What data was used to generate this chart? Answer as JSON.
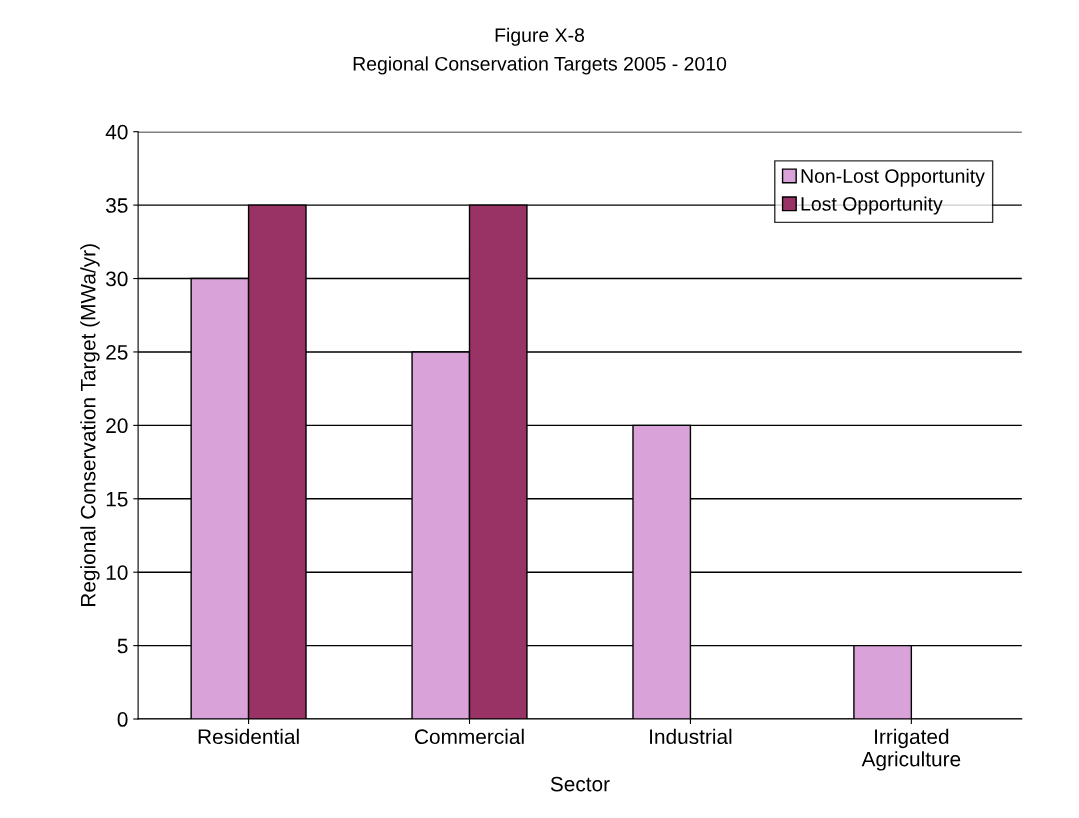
{
  "chart_data": {
    "type": "bar",
    "title": "Figure X-8",
    "subtitle": "Regional Conservation Targets 2005 - 2010",
    "xlabel": "Sector",
    "ylabel": "Regional Conservation Target (MWa/yr)",
    "categories": [
      "Residential",
      "Commercial",
      "Industrial",
      "Irrigated\nAgriculture"
    ],
    "series": [
      {
        "name": "Non-Lost Opportunity",
        "color": "#d9a3d9",
        "values": [
          30,
          25,
          20,
          5
        ]
      },
      {
        "name": "Lost Opportunity",
        "color": "#993366",
        "values": [
          35,
          35,
          null,
          null
        ]
      }
    ],
    "ylim": [
      0,
      40
    ],
    "yticks": [
      0,
      5,
      10,
      15,
      20,
      25,
      30,
      35,
      40
    ],
    "grid": "y",
    "legend": "top right"
  }
}
